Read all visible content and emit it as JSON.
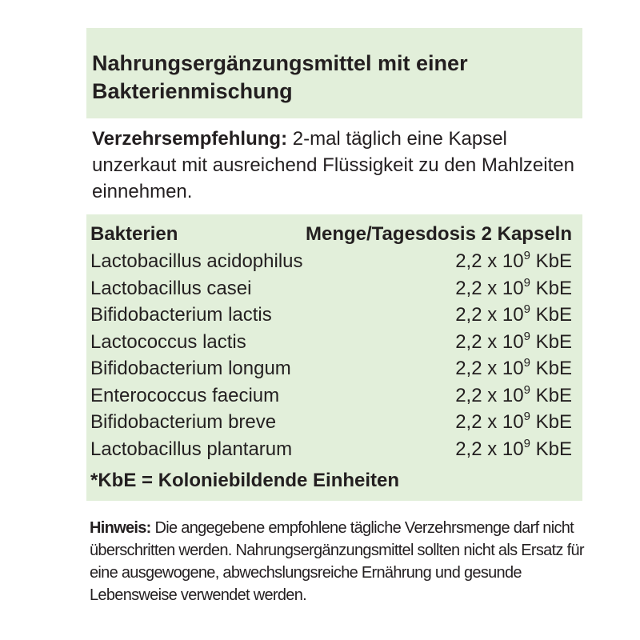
{
  "title": "Nahrungsergänzungsmittel mit einer Bakterienmischung",
  "recommendation": {
    "label": "Verzehrsempfehlung:",
    "text": "2-mal täglich eine Kapsel unzerkaut mit ausreichend Flüssigkeit zu den Mahlzeiten einnehmen."
  },
  "table": {
    "header": [
      "Bakterien",
      "Menge/Tagesdosis 2 Kapseln"
    ],
    "rows": [
      {
        "name": "Lactobacillus acidophilus",
        "amount": "2,2 x 10",
        "exponent": "9",
        "unit": "KbE"
      },
      {
        "name": "Lactobacillus casei",
        "amount": "2,2 x 10",
        "exponent": "9",
        "unit": "KbE"
      },
      {
        "name": "Bifidobacterium lactis",
        "amount": "2,2 x 10",
        "exponent": "9",
        "unit": "KbE"
      },
      {
        "name": "Lactococcus lactis",
        "amount": "2,2 x 10",
        "exponent": "9",
        "unit": "KbE"
      },
      {
        "name": "Bifidobacterium longum",
        "amount": "2,2 x 10",
        "exponent": "9",
        "unit": "KbE"
      },
      {
        "name": "Enterococcus faecium",
        "amount": "2,2 x 10",
        "exponent": "9",
        "unit": "KbE"
      },
      {
        "name": "Bifidobacterium breve",
        "amount": "2,2 x 10",
        "exponent": "9",
        "unit": "KbE"
      },
      {
        "name": "Lactobacillus plantarum",
        "amount": "2,2 x 10",
        "exponent": "9",
        "unit": "KbE"
      }
    ],
    "footnote": "*KbE = Koloniebildende Einheiten"
  },
  "note": {
    "label": "Hinweis:",
    "text": "Die angegebene empfohlene tägliche Verzehrsmenge darf nicht überschritten werden. Nahrungsergänzungsmittel sollten nicht als Ersatz für eine ausgewogene, abwechslungsreiche Ernährung und gesunde Lebensweise verwendet werden."
  }
}
